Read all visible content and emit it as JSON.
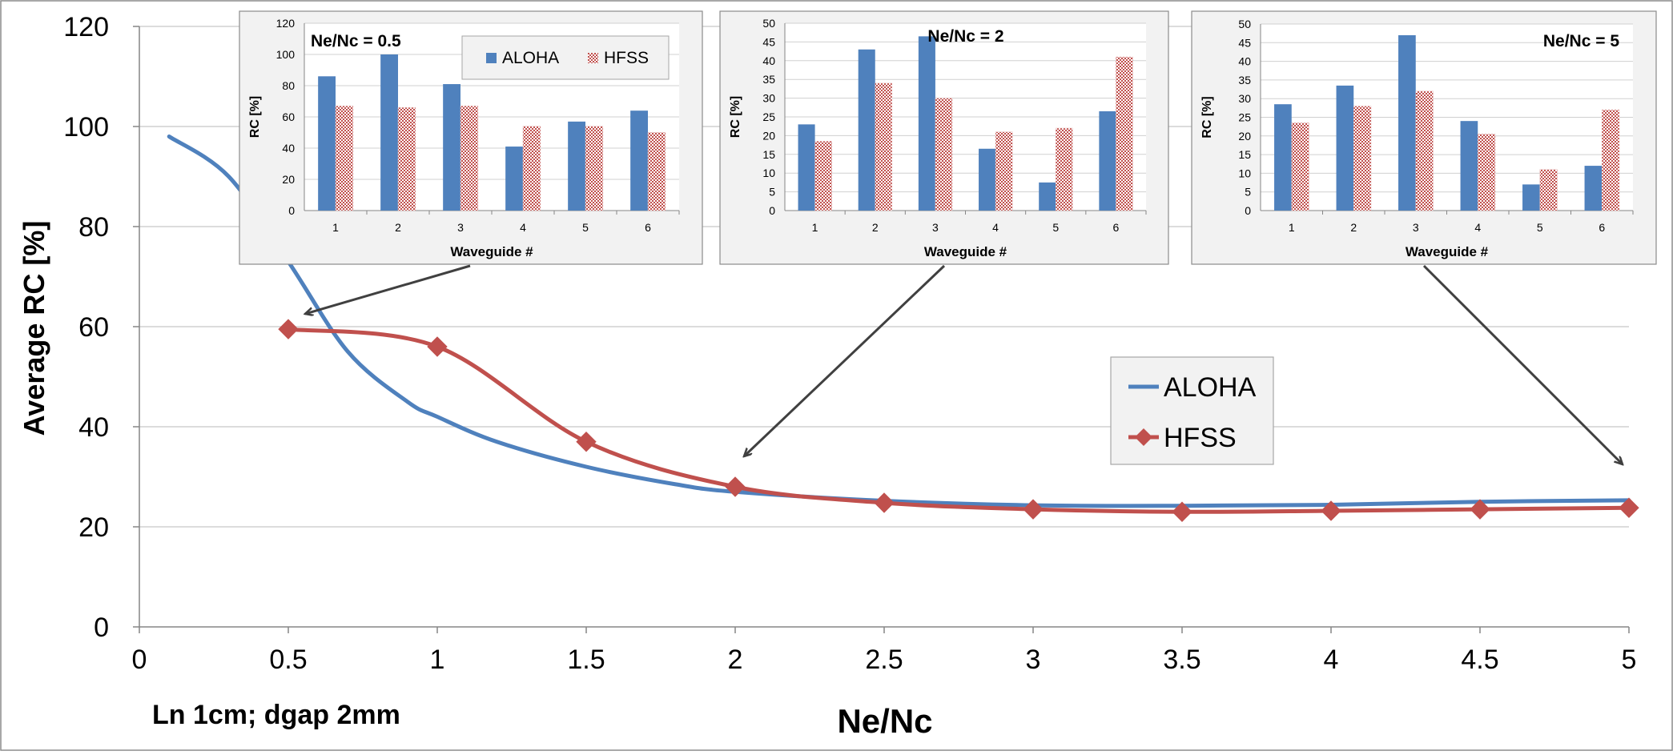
{
  "colors": {
    "aloha": "#4f81bd",
    "hfss": "#c0504d",
    "grid": "#c8c8c8",
    "axis": "#868686",
    "inset_bg": "#f2f2f2",
    "arrow": "#404040"
  },
  "chart_data": [
    {
      "type": "line",
      "title": "",
      "xlabel": "Ne/Nc",
      "ylabel": "Average RC [%]",
      "xlim": [
        0,
        5
      ],
      "ylim": [
        0,
        120
      ],
      "x_ticks": [
        "0",
        "0.5",
        "1",
        "1.5",
        "2",
        "2.5",
        "3",
        "3.5",
        "4",
        "4.5",
        "5"
      ],
      "y_ticks": [
        "0",
        "20",
        "40",
        "60",
        "80",
        "100",
        "120"
      ],
      "grid": true,
      "legend_position": "right",
      "annotation": "Ln 1cm; dgap 2mm",
      "series": [
        {
          "name": "ALOHA",
          "color": "#4f81bd",
          "marker": "none",
          "x": [
            0.1,
            0.3,
            0.5,
            0.7,
            0.9,
            1.0,
            1.2,
            1.5,
            1.8,
            2.0,
            2.5,
            3.0,
            3.5,
            4.0,
            4.5,
            5.0
          ],
          "y": [
            98,
            90,
            73,
            55,
            45,
            42,
            37,
            32,
            28.5,
            27,
            25.2,
            24.3,
            24.2,
            24.4,
            25,
            25.3
          ]
        },
        {
          "name": "HFSS",
          "color": "#c0504d",
          "marker": "diamond",
          "x": [
            0.5,
            1.0,
            1.5,
            2.0,
            2.5,
            3.0,
            3.5,
            4.0,
            4.5,
            5.0
          ],
          "y": [
            59.5,
            56,
            37,
            28,
            24.8,
            23.5,
            23,
            23.2,
            23.5,
            23.8
          ]
        }
      ]
    },
    {
      "type": "bar",
      "title": "Ne/Nc = 0.5",
      "xlabel": "Waveguide #",
      "ylabel": "RC [%]",
      "categories": [
        "1",
        "2",
        "3",
        "4",
        "5",
        "6"
      ],
      "ylim": [
        0,
        120
      ],
      "y_ticks": [
        "0",
        "20",
        "40",
        "60",
        "80",
        "100",
        "120"
      ],
      "legend_position": "top-right",
      "series": [
        {
          "name": "ALOHA",
          "values": [
            86,
            100,
            81,
            41,
            57,
            64
          ]
        },
        {
          "name": "HFSS",
          "values": [
            67,
            66,
            67,
            54,
            54,
            50
          ]
        }
      ]
    },
    {
      "type": "bar",
      "title": "Ne/Nc = 2",
      "xlabel": "Waveguide #",
      "ylabel": "RC [%]",
      "categories": [
        "1",
        "2",
        "3",
        "4",
        "5",
        "6"
      ],
      "ylim": [
        0,
        50
      ],
      "y_ticks": [
        "0",
        "5",
        "10",
        "15",
        "20",
        "25",
        "30",
        "35",
        "40",
        "45",
        "50"
      ],
      "series": [
        {
          "name": "ALOHA",
          "values": [
            23,
            43,
            46.5,
            16.5,
            7.5,
            26.5
          ]
        },
        {
          "name": "HFSS",
          "values": [
            18.5,
            34,
            30,
            21,
            22,
            41
          ]
        }
      ]
    },
    {
      "type": "bar",
      "title": "Ne/Nc = 5",
      "xlabel": "Waveguide #",
      "ylabel": "RC [%]",
      "categories": [
        "1",
        "2",
        "3",
        "4",
        "5",
        "6"
      ],
      "ylim": [
        0,
        50
      ],
      "y_ticks": [
        "0",
        "5",
        "10",
        "15",
        "20",
        "25",
        "30",
        "35",
        "40",
        "45",
        "50"
      ],
      "series": [
        {
          "name": "ALOHA",
          "values": [
            28.5,
            33.5,
            47,
            24,
            7,
            12
          ]
        },
        {
          "name": "HFSS",
          "values": [
            23.5,
            28,
            32,
            20.5,
            11,
            27
          ]
        }
      ]
    }
  ]
}
